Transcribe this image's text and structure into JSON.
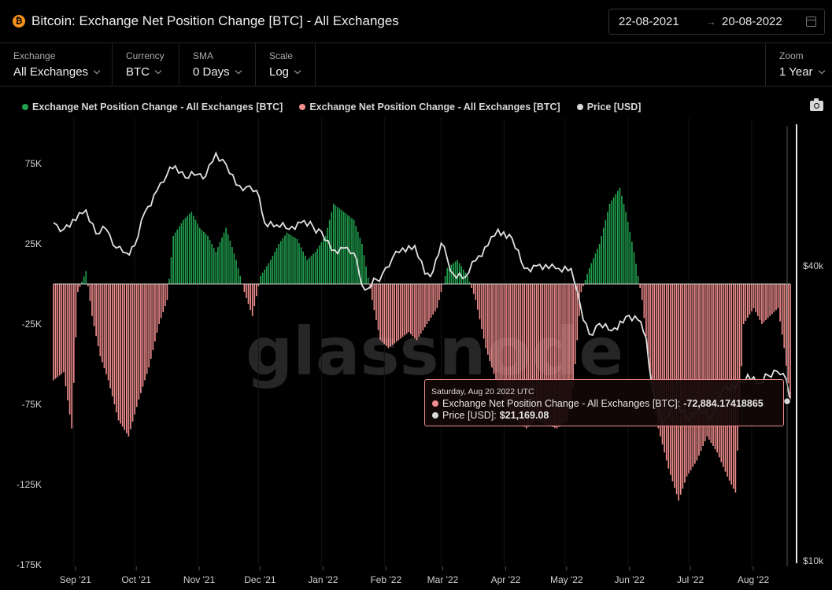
{
  "header": {
    "title": "Bitcoin: Exchange Net Position Change [BTC] - All Exchanges",
    "asset_icon": "bitcoin-icon",
    "date_from": "22-08-2021",
    "date_to": "20-08-2022",
    "date_arrow": "→"
  },
  "controls": {
    "exchange": {
      "label": "Exchange",
      "value": "All Exchanges"
    },
    "currency": {
      "label": "Currency",
      "value": "BTC"
    },
    "sma": {
      "label": "SMA",
      "value": "0 Days"
    },
    "scale": {
      "label": "Scale",
      "value": "Log"
    },
    "zoom": {
      "label": "Zoom",
      "value": "1 Year"
    }
  },
  "legend": [
    {
      "label": "Exchange Net Position Change - All Exchanges [BTC]",
      "color": "#21a04f"
    },
    {
      "label": "Exchange Net Position Change - All Exchanges [BTC]",
      "color": "#f28e8e"
    },
    {
      "label": "Price [USD]",
      "color": "#d9d9d9"
    }
  ],
  "watermark": "glassnode",
  "tooltip": {
    "date": "Saturday, Aug 20 2022 UTC",
    "series1_label": "Exchange Net Position Change - All Exchanges [BTC]:",
    "series1_value": "-72,884.17418865",
    "series2_label": "Price [USD]:",
    "series2_value": "$21,169.08"
  },
  "chart_data": {
    "type": "bar",
    "x_range": [
      "2021-08-22",
      "2022-08-20"
    ],
    "x_tick_labels": [
      "Sep '21",
      "Oct '21",
      "Nov '21",
      "Dec '21",
      "Jan '22",
      "Feb '22",
      "Mar '22",
      "Apr '22",
      "May '22",
      "Jun '22",
      "Jul '22",
      "Aug '22"
    ],
    "y_left_ticks": [
      "75K",
      "25K",
      "-25K",
      "-75K",
      "-125K",
      "-175K"
    ],
    "y_left_tick_values": [
      75000,
      25000,
      -25000,
      -75000,
      -125000,
      -175000
    ],
    "y_left_range": [
      -175000,
      100000
    ],
    "y_right_ticks": [
      "$40k",
      "$10k"
    ],
    "y_right_tick_values": [
      40000,
      10000
    ],
    "y_right_scale": "log",
    "positive_color": "#21a04f",
    "negative_color": "#f28e8e",
    "price_color": "#d9d9d9",
    "series": [
      {
        "name": "Exchange Net Position Change - All Exchanges [BTC]",
        "keys": [
          [
            "2021-08-22",
            -60000
          ],
          [
            "2021-08-27",
            -55000
          ],
          [
            "2021-08-31",
            -90000
          ],
          [
            "2021-09-03",
            -5000
          ],
          [
            "2021-09-07",
            8000
          ],
          [
            "2021-09-10",
            -20000
          ],
          [
            "2021-09-14",
            -45000
          ],
          [
            "2021-09-18",
            -60000
          ],
          [
            "2021-09-23",
            -85000
          ],
          [
            "2021-09-28",
            -95000
          ],
          [
            "2021-10-03",
            -72000
          ],
          [
            "2021-10-08",
            -52000
          ],
          [
            "2021-10-13",
            -25000
          ],
          [
            "2021-10-17",
            -10000
          ],
          [
            "2021-10-20",
            30000
          ],
          [
            "2021-10-25",
            40000
          ],
          [
            "2021-10-29",
            45000
          ],
          [
            "2021-11-02",
            35000
          ],
          [
            "2021-11-06",
            30000
          ],
          [
            "2021-11-10",
            20000
          ],
          [
            "2021-11-15",
            35000
          ],
          [
            "2021-11-20",
            15000
          ],
          [
            "2021-11-24",
            -5000
          ],
          [
            "2021-11-28",
            -20000
          ],
          [
            "2021-12-02",
            5000
          ],
          [
            "2021-12-07",
            15000
          ],
          [
            "2021-12-11",
            25000
          ],
          [
            "2021-12-15",
            32000
          ],
          [
            "2021-12-20",
            28000
          ],
          [
            "2021-12-25",
            15000
          ],
          [
            "2021-12-29",
            20000
          ],
          [
            "2022-01-03",
            30000
          ],
          [
            "2022-01-07",
            50000
          ],
          [
            "2022-01-12",
            45000
          ],
          [
            "2022-01-17",
            40000
          ],
          [
            "2022-01-21",
            25000
          ],
          [
            "2022-01-26",
            -10000
          ],
          [
            "2022-01-30",
            -35000
          ],
          [
            "2022-02-03",
            -40000
          ],
          [
            "2022-02-08",
            -35000
          ],
          [
            "2022-02-13",
            -30000
          ],
          [
            "2022-02-17",
            -35000
          ],
          [
            "2022-02-22",
            -25000
          ],
          [
            "2022-02-27",
            -15000
          ],
          [
            "2022-03-04",
            10000
          ],
          [
            "2022-03-09",
            15000
          ],
          [
            "2022-03-14",
            5000
          ],
          [
            "2022-03-18",
            -10000
          ],
          [
            "2022-03-23",
            -40000
          ],
          [
            "2022-03-28",
            -60000
          ],
          [
            "2022-04-02",
            -75000
          ],
          [
            "2022-04-07",
            -85000
          ],
          [
            "2022-04-12",
            -90000
          ],
          [
            "2022-04-17",
            -85000
          ],
          [
            "2022-04-22",
            -88000
          ],
          [
            "2022-04-27",
            -90000
          ],
          [
            "2022-05-02",
            -85000
          ],
          [
            "2022-05-05",
            -65000
          ],
          [
            "2022-05-09",
            -5000
          ],
          [
            "2022-05-13",
            10000
          ],
          [
            "2022-05-18",
            25000
          ],
          [
            "2022-05-23",
            50000
          ],
          [
            "2022-05-28",
            60000
          ],
          [
            "2022-05-31",
            45000
          ],
          [
            "2022-06-04",
            20000
          ],
          [
            "2022-06-08",
            -10000
          ],
          [
            "2022-06-12",
            -55000
          ],
          [
            "2022-06-16",
            -90000
          ],
          [
            "2022-06-21",
            -115000
          ],
          [
            "2022-06-26",
            -135000
          ],
          [
            "2022-06-30",
            -120000
          ],
          [
            "2022-07-05",
            -110000
          ],
          [
            "2022-07-10",
            -95000
          ],
          [
            "2022-07-15",
            -105000
          ],
          [
            "2022-07-20",
            -120000
          ],
          [
            "2022-07-24",
            -130000
          ],
          [
            "2022-07-28",
            -25000
          ],
          [
            "2022-08-02",
            -15000
          ],
          [
            "2022-08-06",
            -25000
          ],
          [
            "2022-08-10",
            -20000
          ],
          [
            "2022-08-14",
            -15000
          ],
          [
            "2022-08-17",
            -40000
          ],
          [
            "2022-08-20",
            -72884.17
          ]
        ]
      },
      {
        "name": "Price [USD]",
        "keys": [
          [
            "2021-08-22",
            49000
          ],
          [
            "2021-08-27",
            47500
          ],
          [
            "2021-09-02",
            49500
          ],
          [
            "2021-09-07",
            52000
          ],
          [
            "2021-09-12",
            46500
          ],
          [
            "2021-09-17",
            47500
          ],
          [
            "2021-09-22",
            43500
          ],
          [
            "2021-09-27",
            42500
          ],
          [
            "2021-10-01",
            44000
          ],
          [
            "2021-10-06",
            51500
          ],
          [
            "2021-10-12",
            57000
          ],
          [
            "2021-10-17",
            61500
          ],
          [
            "2021-10-21",
            64000
          ],
          [
            "2021-10-26",
            60500
          ],
          [
            "2021-11-01",
            61500
          ],
          [
            "2021-11-05",
            61000
          ],
          [
            "2021-11-10",
            68000
          ],
          [
            "2021-11-15",
            64500
          ],
          [
            "2021-11-20",
            58500
          ],
          [
            "2021-11-25",
            58000
          ],
          [
            "2021-11-30",
            57000
          ],
          [
            "2021-12-04",
            49000
          ],
          [
            "2021-12-10",
            48500
          ],
          [
            "2021-12-16",
            47500
          ],
          [
            "2021-12-22",
            49000
          ],
          [
            "2021-12-28",
            48000
          ],
          [
            "2022-01-01",
            47000
          ],
          [
            "2022-01-06",
            43000
          ],
          [
            "2022-01-12",
            43500
          ],
          [
            "2022-01-17",
            42500
          ],
          [
            "2022-01-21",
            36500
          ],
          [
            "2022-01-24",
            36000
          ],
          [
            "2022-01-31",
            38500
          ],
          [
            "2022-02-05",
            41500
          ],
          [
            "2022-02-10",
            43500
          ],
          [
            "2022-02-16",
            44000
          ],
          [
            "2022-02-21",
            38500
          ],
          [
            "2022-02-25",
            39000
          ],
          [
            "2022-03-01",
            44500
          ],
          [
            "2022-03-07",
            38500
          ],
          [
            "2022-03-13",
            38000
          ],
          [
            "2022-03-18",
            41000
          ],
          [
            "2022-03-24",
            44000
          ],
          [
            "2022-03-29",
            47500
          ],
          [
            "2022-04-05",
            45500
          ],
          [
            "2022-04-11",
            39500
          ],
          [
            "2022-04-17",
            40000
          ],
          [
            "2022-04-23",
            39500
          ],
          [
            "2022-04-28",
            39500
          ],
          [
            "2022-05-04",
            39500
          ],
          [
            "2022-05-07",
            35500
          ],
          [
            "2022-05-10",
            31000
          ],
          [
            "2022-05-13",
            29000
          ],
          [
            "2022-05-18",
            30500
          ],
          [
            "2022-05-24",
            29500
          ],
          [
            "2022-05-31",
            31500
          ],
          [
            "2022-06-06",
            31000
          ],
          [
            "2022-06-10",
            28500
          ],
          [
            "2022-06-13",
            22500
          ],
          [
            "2022-06-18",
            19000
          ],
          [
            "2022-06-24",
            21000
          ],
          [
            "2022-06-30",
            19500
          ],
          [
            "2022-07-06",
            20500
          ],
          [
            "2022-07-12",
            19500
          ],
          [
            "2022-07-18",
            22500
          ],
          [
            "2022-07-24",
            22500
          ],
          [
            "2022-07-30",
            24000
          ],
          [
            "2022-08-05",
            23000
          ],
          [
            "2022-08-12",
            24500
          ],
          [
            "2022-08-15",
            24000
          ],
          [
            "2022-08-18",
            23500
          ],
          [
            "2022-08-20",
            21169.08
          ]
        ]
      }
    ]
  }
}
